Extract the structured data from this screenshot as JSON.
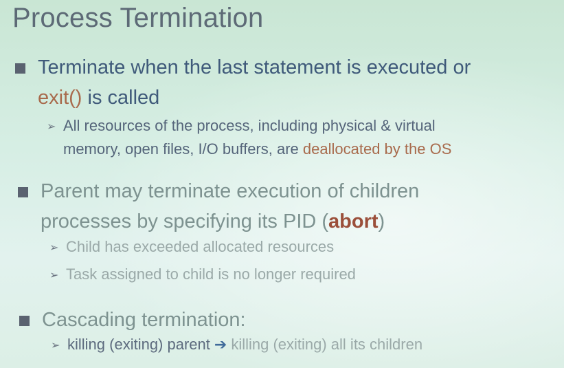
{
  "title": "Process Termination",
  "bullet1": {
    "line1": "Terminate when the last statement is executed or",
    "line2_code": "exit()",
    "line2_rest": " is called",
    "sub1": {
      "line1": "All resources of the process, including physical & virtual",
      "line2_pre": "memory, open files, I/O buffers, are ",
      "line2_hl": "deallocated by the OS"
    }
  },
  "bullet2": {
    "line1": "Parent may terminate execution of children",
    "line2_pre": "processes by specifying its PID (",
    "line2_bold": "abort",
    "line2_post": ")",
    "sub1": "Child has exceeded allocated resources",
    "sub2": "Task assigned to child is no longer required"
  },
  "bullet3": {
    "line1": "Cascading termination:",
    "sub1_pre": "killing (exiting) parent",
    "sub1_arrow": "➔",
    "sub1_post": "killing (exiting) all its children"
  },
  "colors": {
    "accent": "#a86a4c",
    "bullet": "#5a6270",
    "text": "#3f5a7a"
  }
}
